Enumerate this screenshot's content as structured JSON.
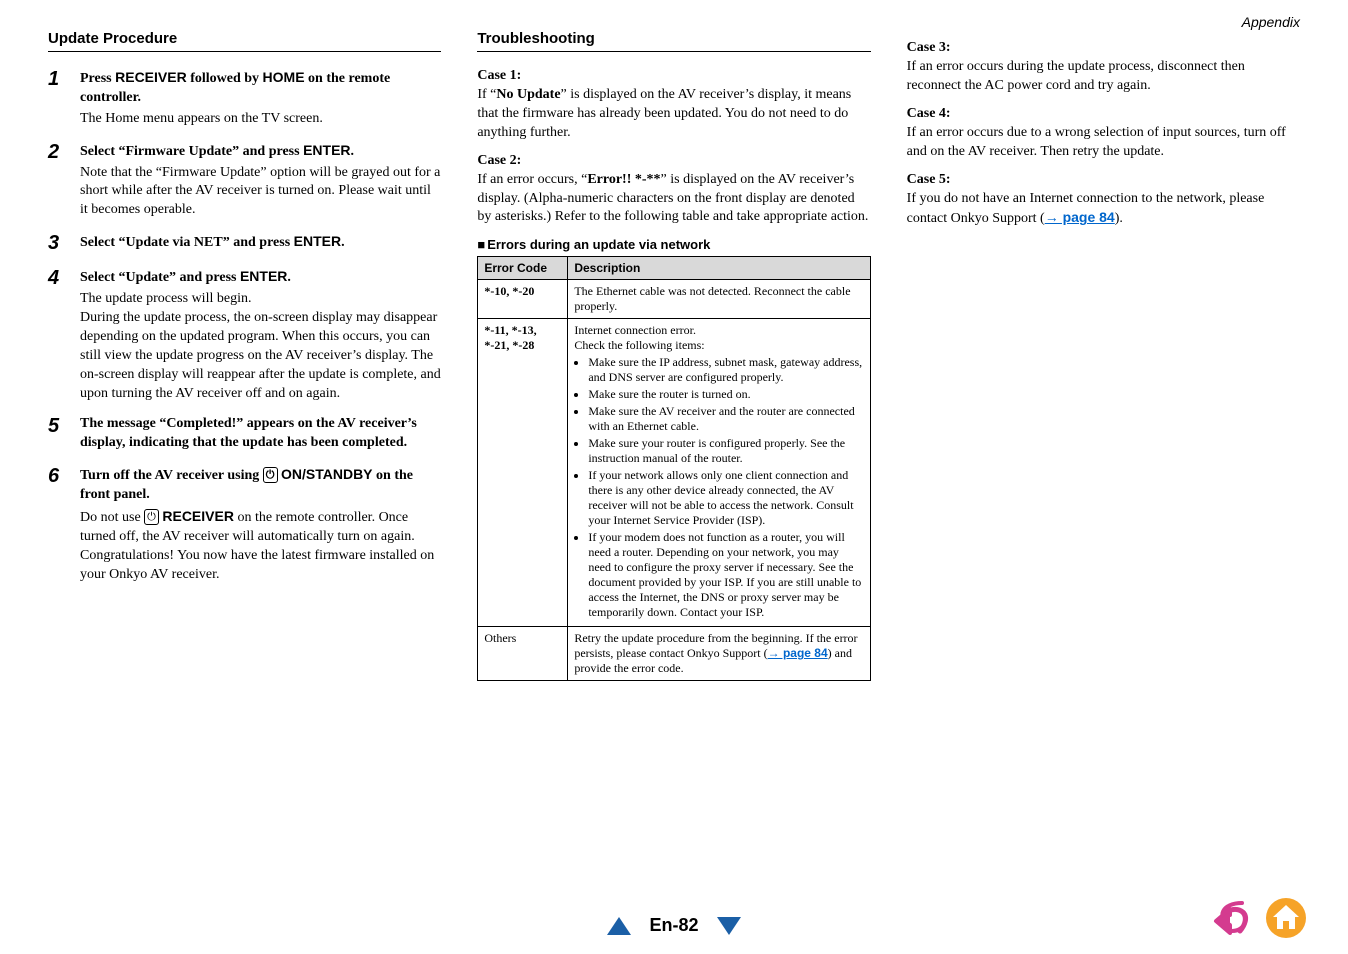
{
  "appendix_label": "Appendix",
  "left": {
    "heading": "Update Procedure",
    "steps": [
      {
        "num": "1",
        "title_parts": [
          "Press ",
          "RECEIVER",
          " followed by ",
          "HOME",
          " on the remote controller."
        ],
        "text": "The Home menu appears on the TV screen."
      },
      {
        "num": "2",
        "title_parts": [
          "Select “Firmware Update” and press ",
          "ENTER",
          "."
        ],
        "text": "Note that the “Firmware Update” option will be grayed out for a short while after the AV receiver is turned on. Please wait until it becomes operable."
      },
      {
        "num": "3",
        "title_parts": [
          "Select “Update via NET” and press ",
          "ENTER",
          "."
        ],
        "text": ""
      },
      {
        "num": "4",
        "title_parts": [
          "Select “Update” and press ",
          "ENTER",
          "."
        ],
        "text": "The update process will begin.\nDuring the update process, the on-screen display may disappear depending on the updated program. When this occurs, you can still view the update progress on the AV receiver’s display. The on-screen display will reappear after the update is complete, and upon turning the AV receiver off and on again."
      },
      {
        "num": "5",
        "title_parts": [
          "The message “Completed!” appears on the AV receiver’s display, indicating that the update has been completed."
        ],
        "text": ""
      },
      {
        "num": "6",
        "title_parts": [
          "Turn off the AV receiver using ",
          "⏻",
          "ON/STANDBY",
          " on the front panel."
        ],
        "text_html": "Do not use <span class=\"power-circle\">⏻</span> <span class=\"sans-bold\">RECEIVER</span> on the remote controller. Once turned off, the AV receiver will automatically turn on again.<br>Congratulations! You now have the latest firmware installed on your Onkyo AV receiver."
      }
    ]
  },
  "middle": {
    "heading": "Troubleshooting",
    "case1_title": "Case 1:",
    "case1_text": "If “No Update” is displayed on the AV receiver’s display, it means that the firmware has already been updated. You do not need to do anything further.",
    "case1_bold": "No Update",
    "case2_title": "Case 2:",
    "case2_text": "If an error occurs, “Error!! *-**” is displayed on the AV receiver’s display. (Alpha-numeric characters on the front display are denoted by asterisks.) Refer to the following table and take appropriate action.",
    "case2_bold": "Error!! *-**",
    "subheading": "Errors during an update via network",
    "table": {
      "headers": [
        "Error Code",
        "Description"
      ],
      "rows": [
        {
          "code": "*-10, *-20",
          "desc": "The Ethernet cable was not detected. Reconnect the cable properly."
        },
        {
          "code": "*-11, *-13, *-21, *-28",
          "desc_intro": "Internet connection error.\nCheck the following items:",
          "bullets": [
            "Make sure the IP address, subnet mask, gateway address, and DNS server are configured properly.",
            "Make sure the router is turned on.",
            "Make sure the AV receiver and the router are connected with an Ethernet cable.",
            "Make sure your router is configured properly. See the instruction manual of the router.",
            "If your network allows only one client connection and there is any other device already connected, the AV receiver will not be able to access the network. Consult your Internet Service Provider (ISP).",
            "If your modem does not function as a router, you will need a router. Depending on your network, you may need to configure the proxy server if necessary. See the document provided by your ISP. If you are still unable to access the Internet, the DNS or proxy server may be temporarily down. Contact your ISP."
          ]
        },
        {
          "code": "Others",
          "code_normal": true,
          "desc_intro": "Retry the update procedure from the beginning. If the error persists, please contact Onkyo Support (",
          "link": "→ page 84",
          "desc_after": ") and provide the error code."
        }
      ]
    }
  },
  "right": {
    "case3_title": "Case 3:",
    "case3_text": "If an error occurs during the update process, disconnect then reconnect the AC power cord and try again.",
    "case4_title": "Case 4:",
    "case4_text": "If an error occurs due to a wrong selection of input sources, turn off and on the AV receiver. Then retry the update.",
    "case5_title": "Case 5:",
    "case5_text_before": "If you do not have an Internet connection to the network, please contact Onkyo Support (",
    "case5_link": "→ page 84",
    "case5_text_after": ")."
  },
  "footer": {
    "page": "En-82"
  },
  "colors": {
    "link": "#0066cc",
    "triangle": "#1b5fa6",
    "home_outer": "#f6a328",
    "home_inner": "#ffffff",
    "back_arrow": "#d43b8f",
    "table_header_bg": "#d9d9d9"
  }
}
